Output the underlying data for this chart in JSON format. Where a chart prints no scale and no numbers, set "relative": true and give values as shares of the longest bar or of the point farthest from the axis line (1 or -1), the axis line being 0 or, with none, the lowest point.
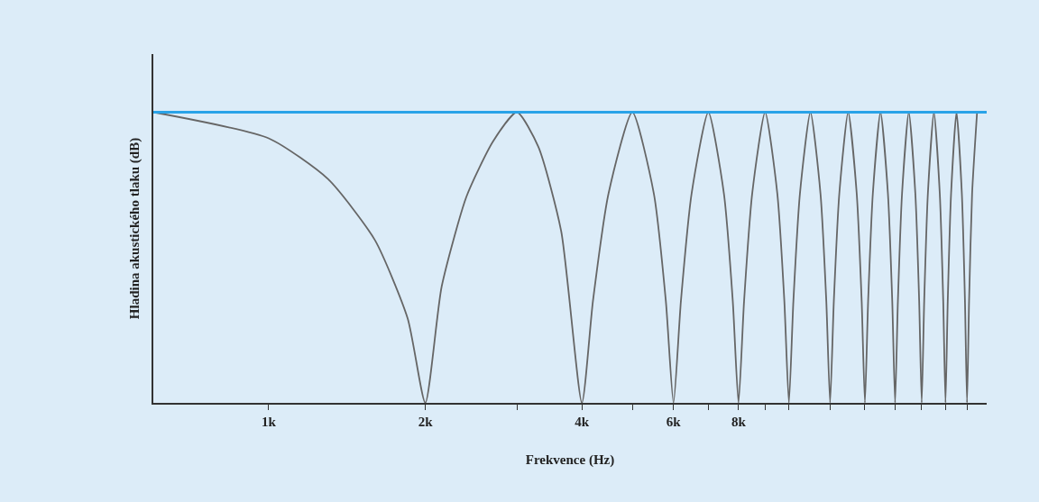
{
  "chart_data": {
    "type": "line",
    "relative": true,
    "log": "x",
    "xlabel": "Frekvence (Hz)",
    "ylabel": "Hladina akustického tlaku (dB)",
    "xlim": [
      600,
      24000
    ],
    "xticks": [
      {
        "value": 1000,
        "label": "1k"
      },
      {
        "value": 2000,
        "label": "2k"
      },
      {
        "value": 3000,
        "label": null
      },
      {
        "value": 4000,
        "label": "4k"
      },
      {
        "value": 5000,
        "label": null
      },
      {
        "value": 6000,
        "label": "6k"
      },
      {
        "value": 7000,
        "label": null
      },
      {
        "value": 8000,
        "label": "8k"
      },
      {
        "value": 9000,
        "label": null
      },
      {
        "value": 10000,
        "label": null
      },
      {
        "value": 12000,
        "label": null
      },
      {
        "value": 14000,
        "label": null
      },
      {
        "value": 16000,
        "label": null
      },
      {
        "value": 18000,
        "label": null
      },
      {
        "value": 20000,
        "label": null
      },
      {
        "value": 22000,
        "label": null
      }
    ],
    "grid": false,
    "marker": "none",
    "line_style": "solid",
    "ref_lines": [
      {
        "axis": "y",
        "value": 1,
        "label": null,
        "color": "#29a3e8"
      }
    ],
    "series": [
      {
        "color": "#666666",
        "x": [
          600,
          1000,
          1300,
          1600,
          1850,
          2000,
          2150,
          2400,
          2700,
          3000,
          3300,
          3650,
          4000,
          4200,
          4500,
          5000,
          5500,
          5800,
          6000,
          6200,
          6500,
          7000,
          7500,
          7800,
          8000,
          8200,
          8500,
          9000,
          9500,
          9800,
          10000,
          10200,
          10500,
          11000,
          11500,
          11800,
          12000,
          12200,
          12500,
          13000,
          13500,
          13800,
          14000,
          14200,
          14500,
          15000,
          15500,
          15800,
          16000,
          16200,
          16500,
          17000,
          17500,
          17800,
          18000,
          18200,
          18500,
          19000,
          19500,
          19800,
          20000,
          20200,
          20500,
          21000,
          21500,
          21800,
          22000,
          22200,
          22500,
          23000
        ],
        "values": [
          1,
          0.91,
          0.77,
          0.56,
          0.29,
          0,
          0.4,
          0.71,
          0.9,
          1,
          0.88,
          0.59,
          0,
          0.35,
          0.72,
          1,
          0.72,
          0.35,
          0,
          0.35,
          0.72,
          1,
          0.72,
          0.35,
          0,
          0.35,
          0.72,
          1,
          0.72,
          0.35,
          0,
          0.35,
          0.72,
          1,
          0.72,
          0.35,
          0,
          0.35,
          0.72,
          1,
          0.72,
          0.35,
          0,
          0.35,
          0.72,
          1,
          0.72,
          0.35,
          0,
          0.35,
          0.72,
          1,
          0.72,
          0.35,
          0,
          0.35,
          0.72,
          1,
          0.72,
          0.35,
          0,
          0.35,
          0.72,
          1,
          0.72,
          0.35,
          0,
          0.35,
          0.72,
          1
        ]
      }
    ]
  }
}
